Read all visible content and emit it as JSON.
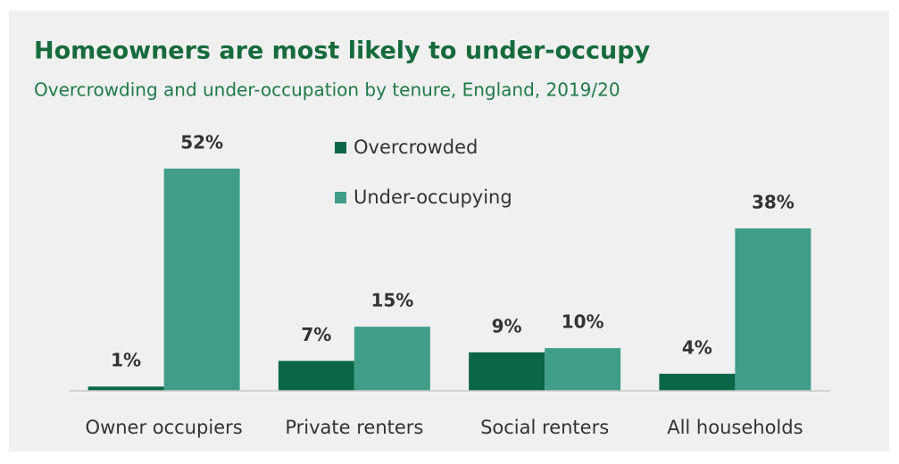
{
  "chart_data": {
    "type": "bar",
    "title": "Homeowners are most likely to under-occupy",
    "subtitle": "Overcrowding and under-occupation by tenure, England, 2019/20",
    "categories": [
      "Owner occupiers",
      "Private renters",
      "Social renters",
      "All households"
    ],
    "series": [
      {
        "name": "Overcrowded",
        "color": "#0b6647",
        "values": [
          1,
          7,
          9,
          4
        ],
        "value_labels": [
          "1%",
          "7%",
          "9%",
          "4%"
        ]
      },
      {
        "name": "Under-occupying",
        "color": "#409e88",
        "values": [
          52,
          15,
          10,
          38
        ],
        "value_labels": [
          "52%",
          "15%",
          "10%",
          "38%"
        ]
      }
    ]
  }
}
